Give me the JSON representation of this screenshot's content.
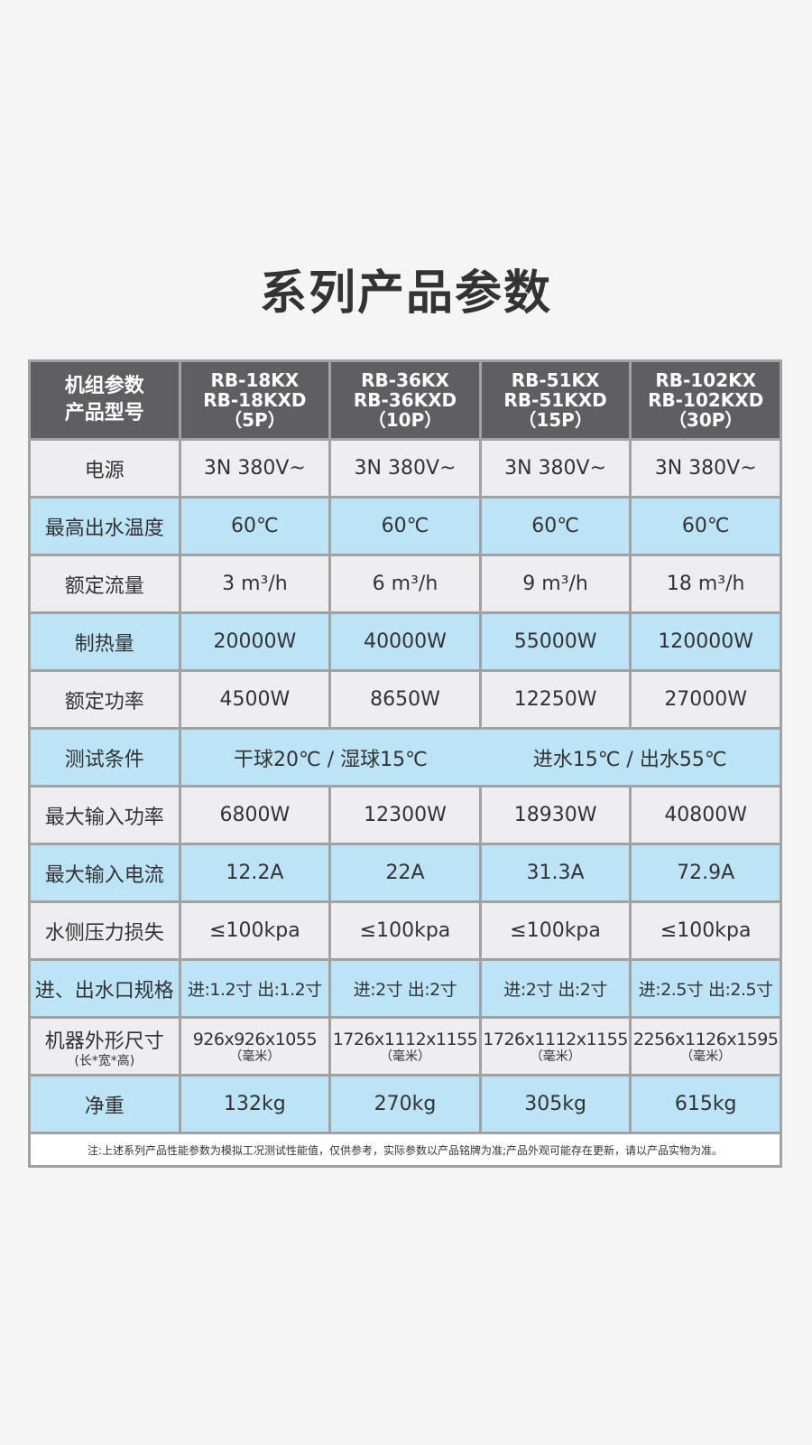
{
  "title": "系列产品参数",
  "header": {
    "label_line1": "机组参数",
    "label_line2": "产品型号",
    "models": [
      {
        "line1": "RB-18KX",
        "line2": "RB-18KXD",
        "line3": "（5P）"
      },
      {
        "line1": "RB-36KX",
        "line2": "RB-36KXD",
        "line3": "（10P）"
      },
      {
        "line1": "RB-51KX",
        "line2": "RB-51KXD",
        "line3": "（15P）"
      },
      {
        "line1": "RB-102KX",
        "line2": "RB-102KXD",
        "line3": "（30P）"
      }
    ]
  },
  "rows": [
    {
      "label": "电源",
      "values": [
        "3N 380V~",
        "3N 380V~",
        "3N 380V~",
        "3N 380V~"
      ]
    },
    {
      "label": "最高出水温度",
      "values": [
        "60℃",
        "60℃",
        "60℃",
        "60℃"
      ]
    },
    {
      "label": "额定流量",
      "values": [
        "3 m³/h",
        "6 m³/h",
        "9 m³/h",
        "18 m³/h"
      ]
    },
    {
      "label": "制热量",
      "values": [
        "20000W",
        "40000W",
        "55000W",
        "120000W"
      ]
    },
    {
      "label": "额定功率",
      "values": [
        "4500W",
        "8650W",
        "12250W",
        "27000W"
      ]
    }
  ],
  "test_condition": {
    "label": "测试条件",
    "left": "干球20℃ / 湿球15℃",
    "right": "进水15℃ / 出水55℃"
  },
  "rows2": [
    {
      "label": "最大输入功率",
      "values": [
        "6800W",
        "12300W",
        "18930W",
        "40800W"
      ]
    },
    {
      "label": "最大输入电流",
      "values": [
        "12.2A",
        "22A",
        "31.3A",
        "72.9A"
      ]
    },
    {
      "label": "水侧压力损失",
      "values": [
        "≤100kpa",
        "≤100kpa",
        "≤100kpa",
        "≤100kpa"
      ]
    },
    {
      "label": "进、出水口规格",
      "values": [
        "进:1.2寸 出:1.2寸",
        "进:2寸  出:2寸",
        "进:2寸  出:2寸",
        "进:2.5寸 出:2.5寸"
      ]
    }
  ],
  "dimensions": {
    "label": "机器外形尺寸",
    "sublabel": "(长*宽*高)",
    "unit": "（毫米）",
    "values": [
      "926x926x1055",
      "1726x1112x1155",
      "1726x1112x1155",
      "2256x1126x1595"
    ]
  },
  "weight": {
    "label": "净重",
    "values": [
      "132kg",
      "270kg",
      "305kg",
      "615kg"
    ]
  },
  "note": "注:上述系列产品性能参数为模拟工况测试性能值，仅供参考，实际参数以产品铭牌为准;产品外观可能存在更新，请以产品实物为准。"
}
